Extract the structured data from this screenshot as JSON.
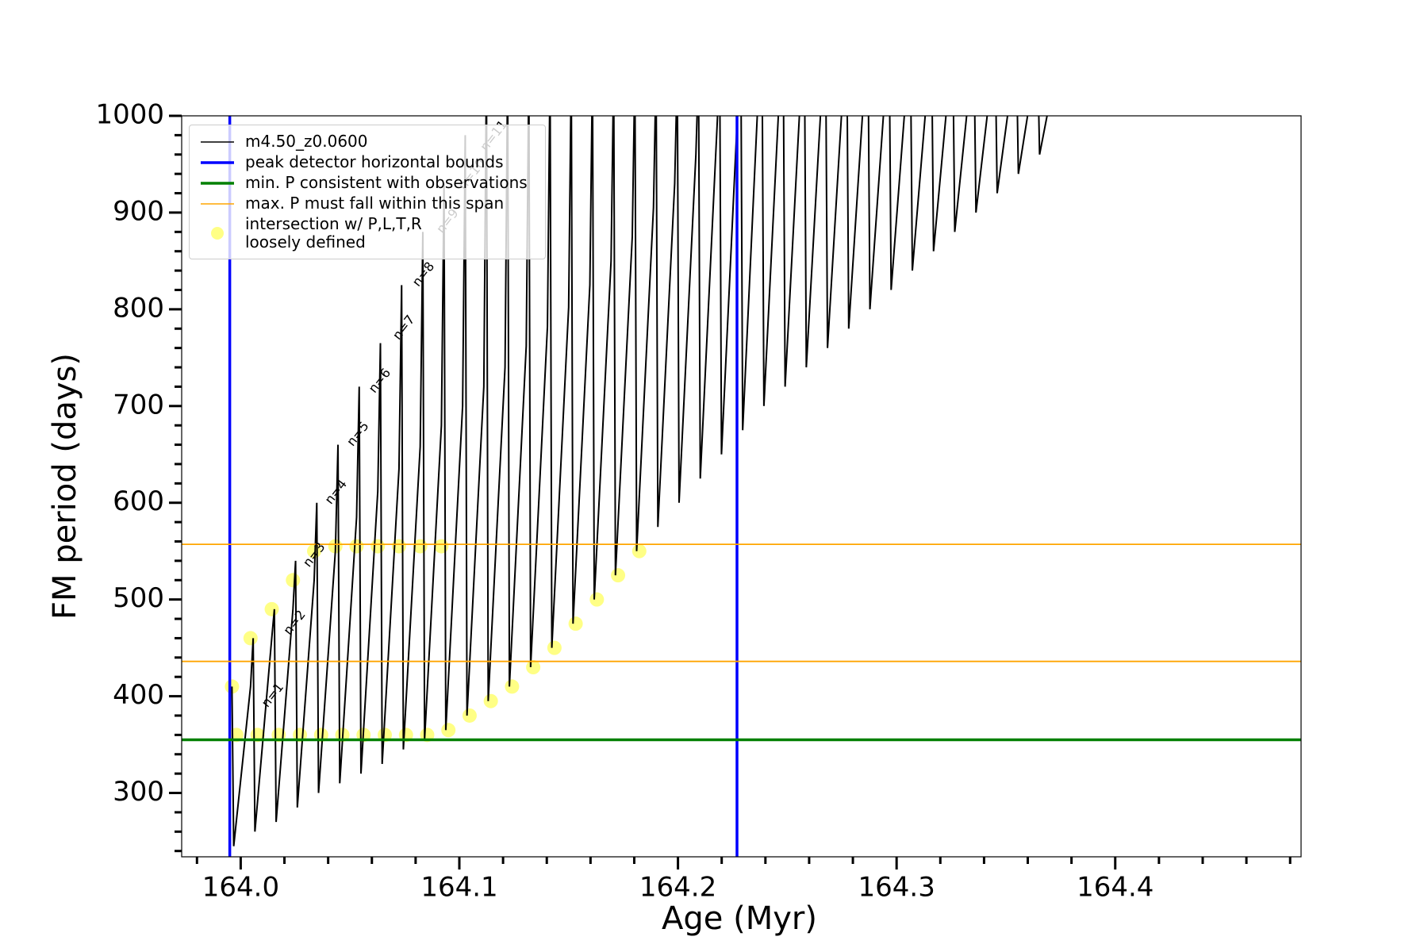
{
  "chart_data": {
    "type": "line",
    "xlabel": "Age (Myr)",
    "ylabel": "FM period (days)",
    "xlim": [
      163.973,
      164.485
    ],
    "ylim": [
      234,
      1000
    ],
    "xticks": [
      {
        "value": 164.0,
        "label": "164.0"
      },
      164.1,
      164.2,
      164.3,
      164.4
    ],
    "yticks": [
      300,
      400,
      500,
      600,
      700,
      800,
      900,
      1000
    ],
    "xminorticks": [
      163.98,
      164.02,
      164.04,
      164.06,
      164.08,
      164.12,
      164.14,
      164.16,
      164.18,
      164.22,
      164.24,
      164.26,
      164.28,
      164.32,
      164.34,
      164.36,
      164.38,
      164.42,
      164.44,
      164.46,
      164.48
    ],
    "yminorticks": [
      240,
      260,
      280,
      320,
      340,
      360,
      380,
      420,
      440,
      460,
      480,
      520,
      540,
      560,
      580,
      620,
      640,
      660,
      680,
      720,
      740,
      760,
      780,
      820,
      840,
      860,
      880,
      920,
      940,
      960,
      980
    ],
    "legend": "upper left",
    "series": [
      {
        "name": "m4.50_z0.0600",
        "color": "#000000",
        "x": [
          163.996,
          163.9968,
          164.0045,
          164.0057,
          164.0065,
          164.0142,
          164.0154,
          164.0162,
          164.0239,
          164.0251,
          164.0259,
          164.0336,
          164.0348,
          164.0356,
          164.0433,
          164.0445,
          164.0453,
          164.053,
          164.0542,
          164.055,
          164.0627,
          164.0639,
          164.0647,
          164.0724,
          164.0736,
          164.0744,
          164.0821,
          164.0833,
          164.0841,
          164.0918,
          164.093,
          164.0938,
          164.1015,
          164.1027,
          164.1035,
          164.1112,
          164.1124,
          164.1132,
          164.1209,
          164.1221,
          164.1229,
          164.1306,
          164.1318,
          164.1326,
          164.1403,
          164.1415,
          164.1423,
          164.15,
          164.1512,
          164.152,
          164.1597,
          164.1609,
          164.1617,
          164.1694,
          164.1706,
          164.1714,
          164.1791,
          164.1803,
          164.1811,
          164.1888,
          164.19,
          164.1908,
          164.1985,
          164.1997,
          164.2005,
          164.2082,
          164.2094,
          164.2102,
          164.2179,
          164.2191,
          164.2199,
          164.2276,
          164.2288,
          164.2296,
          164.2373,
          164.2385,
          164.2393,
          164.247,
          164.2482,
          164.249,
          164.2567,
          164.2579,
          164.2587,
          164.2664,
          164.2676,
          164.2684,
          164.2761,
          164.2773,
          164.2781,
          164.2858,
          164.287,
          164.2878,
          164.2955,
          164.2967,
          164.2975,
          164.3052,
          164.3064,
          164.3072,
          164.3149,
          164.3161,
          164.3169,
          164.3246,
          164.3258,
          164.3266,
          164.3343,
          164.3355,
          164.3363,
          164.344,
          164.3452,
          164.346,
          164.3537,
          164.3549,
          164.3557,
          164.3634,
          164.3646,
          164.3654,
          164.3731
        ],
        "y": [
          410,
          245,
          410,
          460,
          260,
          460,
          490,
          270,
          490,
          540,
          285,
          520,
          600,
          300,
          550,
          660,
          310,
          585,
          720,
          320,
          612,
          765,
          330,
          635,
          825,
          345,
          658,
          880,
          355,
          680,
          930,
          365,
          700,
          980,
          380,
          720,
          1050,
          395,
          740,
          1050,
          410,
          762,
          1050,
          430,
          782,
          1050,
          450,
          802,
          1050,
          475,
          825,
          1050,
          500,
          850,
          1050,
          525,
          875,
          1050,
          550,
          905,
          1050,
          575,
          930,
          1050,
          600,
          960,
          1050,
          625,
          990,
          1050,
          650,
          1020,
          1050,
          675,
          1050,
          1050,
          700,
          1050,
          1050,
          720,
          1050,
          1050,
          740,
          1050,
          1050,
          760,
          1050,
          1050,
          780,
          1050,
          1050,
          800,
          1050,
          1050,
          820,
          1050,
          1050,
          840,
          1050,
          1050,
          860,
          1050,
          1050,
          880,
          1050,
          1050,
          900,
          1050,
          1050,
          920,
          1050,
          1050,
          940,
          1050,
          1050,
          960,
          1050
        ]
      }
    ],
    "scatter": {
      "name": "intersection w/ P,L,T,R\nloosely defined",
      "color": "#ffff33",
      "x": [
        163.998,
        164.0077,
        164.0174,
        164.0271,
        164.0368,
        164.0465,
        164.0562,
        164.0659,
        164.0756,
        164.0853,
        164.095,
        164.1047,
        164.1144,
        164.1241,
        164.1338,
        164.1435,
        164.1532,
        164.1629,
        164.1726,
        164.1823,
        163.996,
        164.0045,
        164.0142,
        164.0239,
        164.0336,
        164.0433,
        164.053,
        164.0627,
        164.0724,
        164.0821,
        164.0918
      ],
      "y": [
        360,
        360,
        360,
        360,
        360,
        360,
        360,
        360,
        360,
        360,
        365,
        380,
        395,
        410,
        430,
        450,
        475,
        500,
        525,
        550,
        410,
        460,
        490,
        520,
        550,
        555,
        555,
        555,
        555,
        555,
        555
      ]
    },
    "vlines": {
      "name": "peak detector horizontal bounds",
      "color": "#0000ff",
      "values": [
        163.995,
        164.227
      ]
    },
    "hlines": [
      {
        "name": "min. P consistent with observations",
        "color": "#008000",
        "values": [
          355
        ]
      },
      {
        "name": "max. P must fall within this span",
        "color": "#ffa500",
        "values": [
          436,
          557
        ]
      }
    ],
    "annotations": [
      {
        "text": "n=1",
        "x": 164.011,
        "y": 390
      },
      {
        "text": "n=2",
        "x": 164.021,
        "y": 465
      },
      {
        "text": "n=3",
        "x": 164.03,
        "y": 535
      },
      {
        "text": "n=4",
        "x": 164.04,
        "y": 600
      },
      {
        "text": "n=5",
        "x": 164.05,
        "y": 660
      },
      {
        "text": "n=6",
        "x": 164.06,
        "y": 715
      },
      {
        "text": "n=7",
        "x": 164.071,
        "y": 770
      },
      {
        "text": "n=8",
        "x": 164.08,
        "y": 825
      },
      {
        "text": "n=9",
        "x": 164.091,
        "y": 880
      },
      {
        "text": "n=10",
        "x": 164.101,
        "y": 925
      },
      {
        "text": "n=11",
        "x": 164.111,
        "y": 965
      }
    ]
  }
}
